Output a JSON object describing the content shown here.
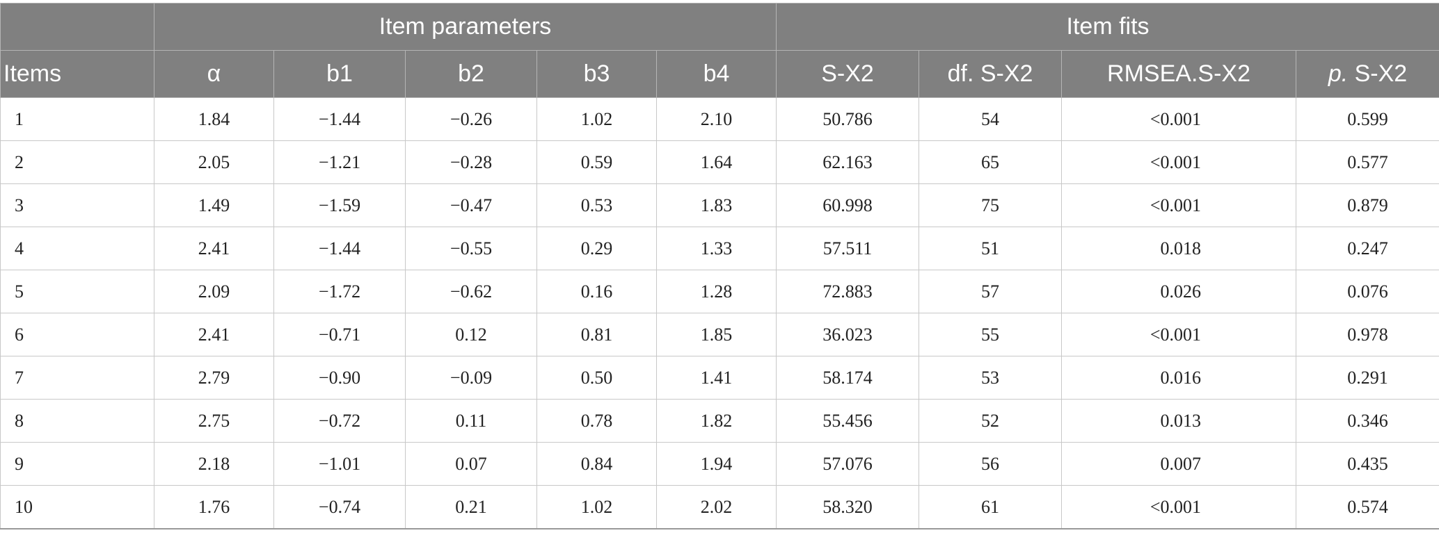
{
  "table": {
    "group_headers": {
      "empty": "",
      "item_parameters": "Item parameters",
      "item_fits": "Item fits"
    },
    "columns": {
      "items": "Items",
      "alpha": "α",
      "b1": "b1",
      "b2": "b2",
      "b3": "b3",
      "b4": "b4",
      "s_x2": "S-X2",
      "df_s_x2": "df. S-X2",
      "rmsea_s_x2": "RMSEA.S-X2",
      "p_prefix": "p.",
      "p_suffix": " S-X2"
    },
    "rows": [
      {
        "item": "1",
        "alpha": "1.84",
        "b1": "−1.44",
        "b2": "−0.26",
        "b3": "1.02",
        "b4": "2.10",
        "sx2": "50.786",
        "df": "54",
        "rmsea": "<0.001",
        "p": "0.599"
      },
      {
        "item": "2",
        "alpha": "2.05",
        "b1": "−1.21",
        "b2": "−0.28",
        "b3": "0.59",
        "b4": "1.64",
        "sx2": "62.163",
        "df": "65",
        "rmsea": "<0.001",
        "p": "0.577"
      },
      {
        "item": "3",
        "alpha": "1.49",
        "b1": "−1.59",
        "b2": "−0.47",
        "b3": "0.53",
        "b4": "1.83",
        "sx2": "60.998",
        "df": "75",
        "rmsea": "<0.001",
        "p": "0.879"
      },
      {
        "item": "4",
        "alpha": "2.41",
        "b1": "−1.44",
        "b2": "−0.55",
        "b3": "0.29",
        "b4": "1.33",
        "sx2": "57.511",
        "df": "51",
        "rmsea": "0.018",
        "p": "0.247"
      },
      {
        "item": "5",
        "alpha": "2.09",
        "b1": "−1.72",
        "b2": "−0.62",
        "b3": "0.16",
        "b4": "1.28",
        "sx2": "72.883",
        "df": "57",
        "rmsea": "0.026",
        "p": "0.076"
      },
      {
        "item": "6",
        "alpha": "2.41",
        "b1": "−0.71",
        "b2": "0.12",
        "b3": "0.81",
        "b4": "1.85",
        "sx2": "36.023",
        "df": "55",
        "rmsea": "<0.001",
        "p": "0.978"
      },
      {
        "item": "7",
        "alpha": "2.79",
        "b1": "−0.90",
        "b2": "−0.09",
        "b3": "0.50",
        "b4": "1.41",
        "sx2": "58.174",
        "df": "53",
        "rmsea": "0.016",
        "p": "0.291"
      },
      {
        "item": "8",
        "alpha": "2.75",
        "b1": "−0.72",
        "b2": "0.11",
        "b3": "0.78",
        "b4": "1.82",
        "sx2": "55.456",
        "df": "52",
        "rmsea": "0.013",
        "p": "0.346"
      },
      {
        "item": "9",
        "alpha": "2.18",
        "b1": "−1.01",
        "b2": "0.07",
        "b3": "0.84",
        "b4": "1.94",
        "sx2": "57.076",
        "df": "56",
        "rmsea": "0.007",
        "p": "0.435"
      },
      {
        "item": "10",
        "alpha": "1.76",
        "b1": "−0.74",
        "b2": "0.21",
        "b3": "1.02",
        "b4": "2.02",
        "sx2": "58.320",
        "df": "61",
        "rmsea": "<0.001",
        "p": "0.574"
      }
    ]
  }
}
